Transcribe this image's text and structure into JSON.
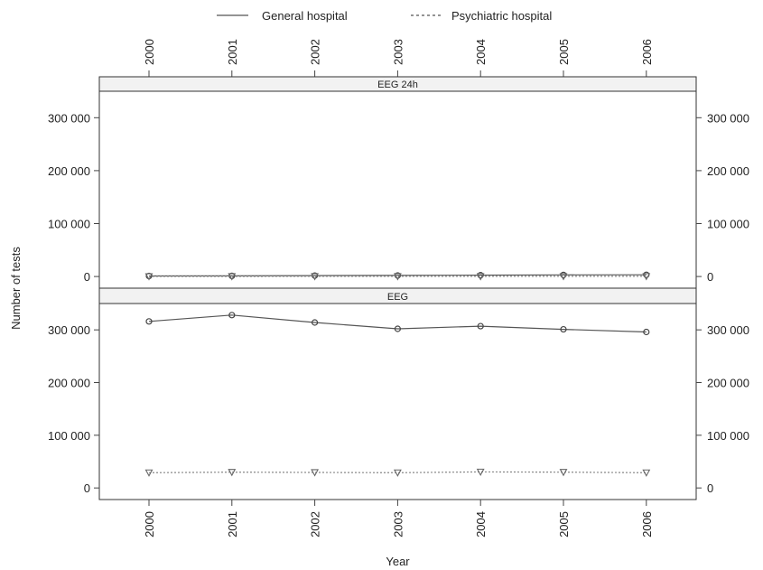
{
  "chart_data": {
    "type": "line",
    "xlabel": "Year",
    "ylabel": "Number of tests",
    "x": [
      "2000",
      "2001",
      "2002",
      "2003",
      "2004",
      "2005",
      "2006"
    ],
    "legend": {
      "position": "top",
      "entries": [
        {
          "name": "General hospital",
          "line_style": "solid"
        },
        {
          "name": "Psychiatric hospital",
          "line_style": "dashed"
        }
      ]
    },
    "grid": false,
    "ylim": [
      -22000,
      350000
    ],
    "yticks": [
      0,
      100000,
      200000,
      300000
    ],
    "ytick_labels": [
      "0",
      "100 000",
      "200 000",
      "300 000"
    ],
    "panels": [
      {
        "strip": "EEG 24h",
        "series": [
          {
            "name": "General hospital",
            "marker": "circle",
            "values": [
              1000,
              1200,
              1800,
              2000,
              2500,
              3000,
              3200
            ]
          },
          {
            "name": "Psychiatric hospital",
            "marker": "triangle-down",
            "values": [
              200,
              250,
              300,
              300,
              350,
              400,
              400
            ]
          }
        ]
      },
      {
        "strip": "EEG",
        "series": [
          {
            "name": "General hospital",
            "marker": "circle",
            "values": [
              316000,
              328000,
              314000,
              302000,
              307000,
              301000,
              296000
            ]
          },
          {
            "name": "Psychiatric hospital",
            "marker": "triangle-down",
            "values": [
              29000,
              30000,
              29500,
              29000,
              30500,
              30000,
              29000
            ]
          }
        ]
      }
    ]
  }
}
